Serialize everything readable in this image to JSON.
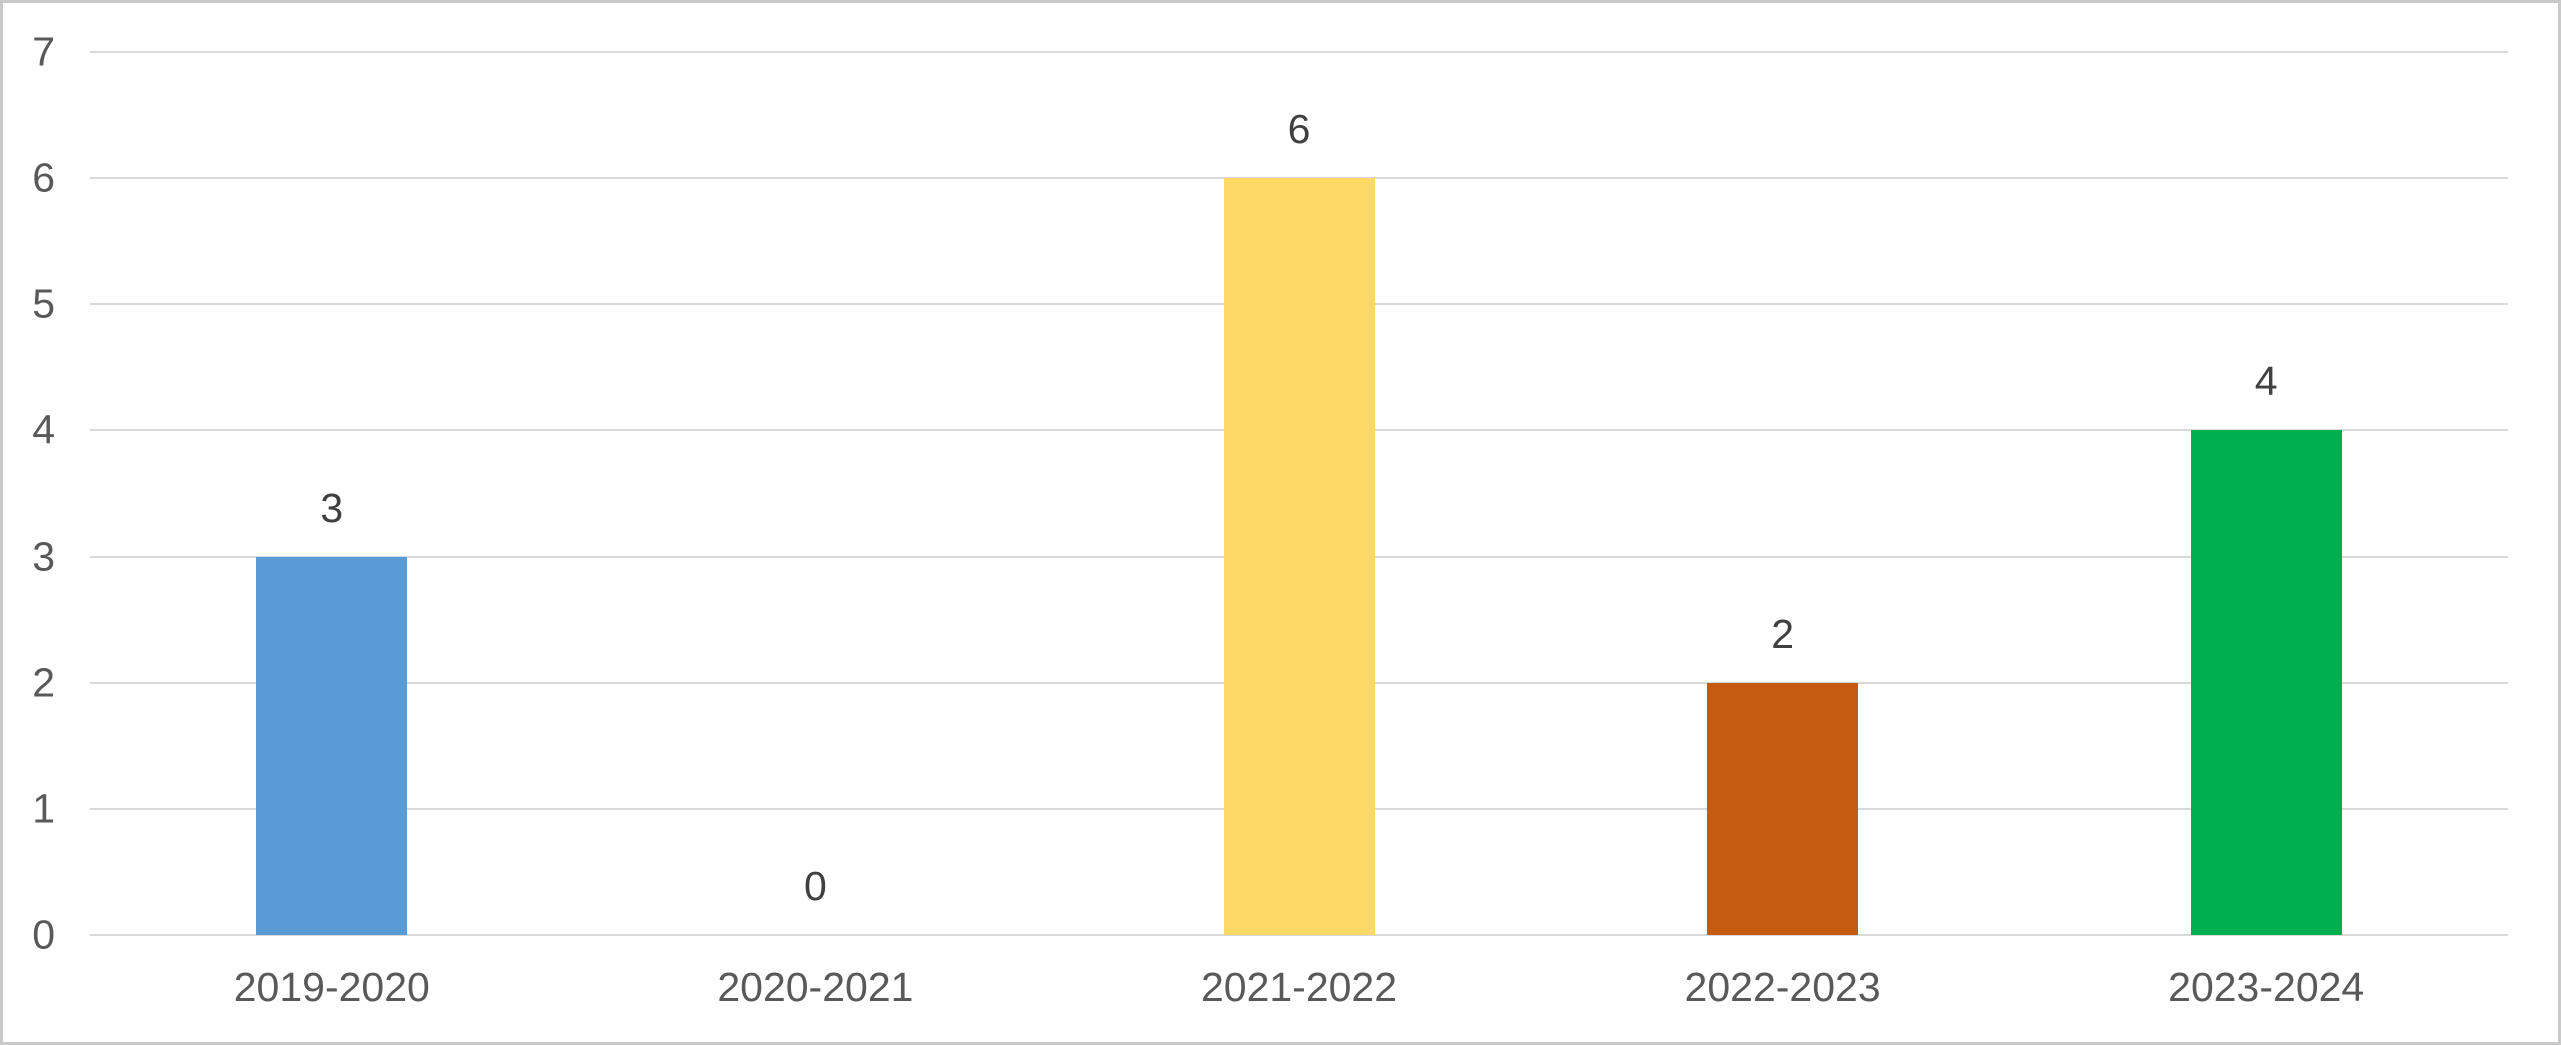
{
  "chart_data": {
    "type": "bar",
    "categories": [
      "2019-2020",
      "2020-2021",
      "2021-2022",
      "2022-2023",
      "2023-2024"
    ],
    "values": [
      3,
      0,
      6,
      2,
      4
    ],
    "data_labels": [
      "3",
      "0",
      "6",
      "2",
      "4"
    ],
    "bar_colors": [
      "#5B9BD5",
      null,
      "#FFD966",
      "#C55A11",
      "#00B050"
    ],
    "title": "",
    "xlabel": "",
    "ylabel": "",
    "ylim": [
      0,
      7
    ],
    "yticks": [
      0,
      1,
      2,
      3,
      4,
      5,
      6,
      7
    ],
    "grid": "horizontal",
    "legend": "none"
  },
  "colors": {
    "background": "#FFFFFF",
    "frame_border": "#C9C9C9",
    "gridline": "#D9D9D9",
    "axis_text": "#595959",
    "data_label_text": "#404040"
  }
}
